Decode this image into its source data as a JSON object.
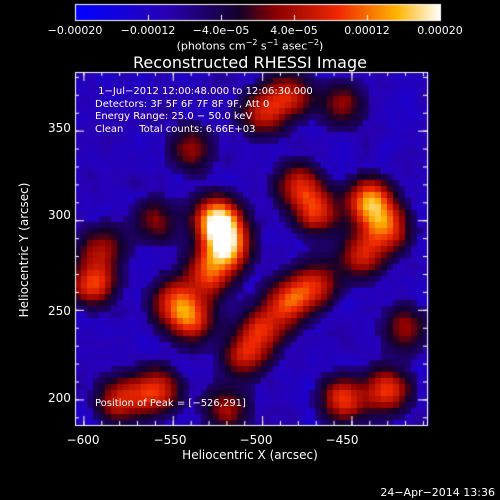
{
  "chart_data": {
    "type": "heatmap",
    "title": "Reconstructed RHESSI Image",
    "xlabel": "Heliocentric X (arcsec)",
    "ylabel": "Heliocentric Y (arcsec)",
    "xlim": [
      -605,
      -408
    ],
    "ylim": [
      186,
      383
    ],
    "xticks": [
      "−600",
      "−550",
      "−500",
      "−450"
    ],
    "xtick_values": [
      -600,
      -550,
      -500,
      -450
    ],
    "yticks": [
      "350",
      "300",
      "250",
      "200"
    ],
    "ytick_values": [
      350,
      300,
      250,
      200
    ],
    "colorbar": {
      "range": [
        -0.0002,
        0.0002
      ],
      "ticks": [
        "−0.00020",
        "−0.00012",
        "−4.0e−05",
        "4.0e−05",
        "0.00012",
        "0.00020"
      ],
      "tick_values": [
        -0.0002,
        -0.00012,
        -4e-05,
        4e-05,
        0.00012,
        0.0002
      ],
      "units_main": "(photons cm",
      "units_exp1": "−2",
      "units_mid": " s",
      "units_exp2": "−1",
      "units_tail": " asec",
      "units_exp3": "−2",
      "units_close": ")"
    },
    "info_lines": [
      " 1−Jul−2012 12:00:48.000 to 12:06:30.000",
      "Detectors: 3F 5F 6F 7F 8F 9F, Att 0",
      "Energy Range: 25.0 − 50.0 keV",
      "Clean     Total counts: 6.66E+03"
    ],
    "peak_label": "Position of Peak = [−526,291]",
    "peak": [
      -526,
      291
    ],
    "hotspots": [
      {
        "x": -525,
        "y": 300,
        "amp": 1.0
      },
      {
        "x": -520,
        "y": 285,
        "amp": 0.8
      },
      {
        "x": -530,
        "y": 270,
        "amp": 0.6
      },
      {
        "x": -540,
        "y": 245,
        "amp": 0.6
      },
      {
        "x": -550,
        "y": 255,
        "amp": 0.5
      },
      {
        "x": -595,
        "y": 265,
        "amp": 0.6
      },
      {
        "x": -590,
        "y": 285,
        "amp": 0.4
      },
      {
        "x": -440,
        "y": 310,
        "amp": 0.8
      },
      {
        "x": -430,
        "y": 295,
        "amp": 0.6
      },
      {
        "x": -445,
        "y": 280,
        "amp": 0.5
      },
      {
        "x": -480,
        "y": 320,
        "amp": 0.5
      },
      {
        "x": -470,
        "y": 305,
        "amp": 0.55
      },
      {
        "x": -485,
        "y": 255,
        "amp": 0.6
      },
      {
        "x": -470,
        "y": 265,
        "amp": 0.5
      },
      {
        "x": -510,
        "y": 225,
        "amp": 0.5
      },
      {
        "x": -500,
        "y": 240,
        "amp": 0.5
      },
      {
        "x": -560,
        "y": 205,
        "amp": 0.6
      },
      {
        "x": -580,
        "y": 200,
        "amp": 0.5
      },
      {
        "x": -455,
        "y": 200,
        "amp": 0.6
      },
      {
        "x": -430,
        "y": 205,
        "amp": 0.6
      },
      {
        "x": -420,
        "y": 240,
        "amp": 0.4
      },
      {
        "x": -500,
        "y": 360,
        "amp": 0.5
      },
      {
        "x": -485,
        "y": 370,
        "amp": 0.5
      },
      {
        "x": -540,
        "y": 340,
        "amp": 0.4
      },
      {
        "x": -455,
        "y": 365,
        "amp": 0.4
      },
      {
        "x": -520,
        "y": 195,
        "amp": 0.4
      },
      {
        "x": -560,
        "y": 300,
        "amp": 0.35
      }
    ]
  },
  "footer": {
    "date": "24−Apr−2014 13:36"
  }
}
